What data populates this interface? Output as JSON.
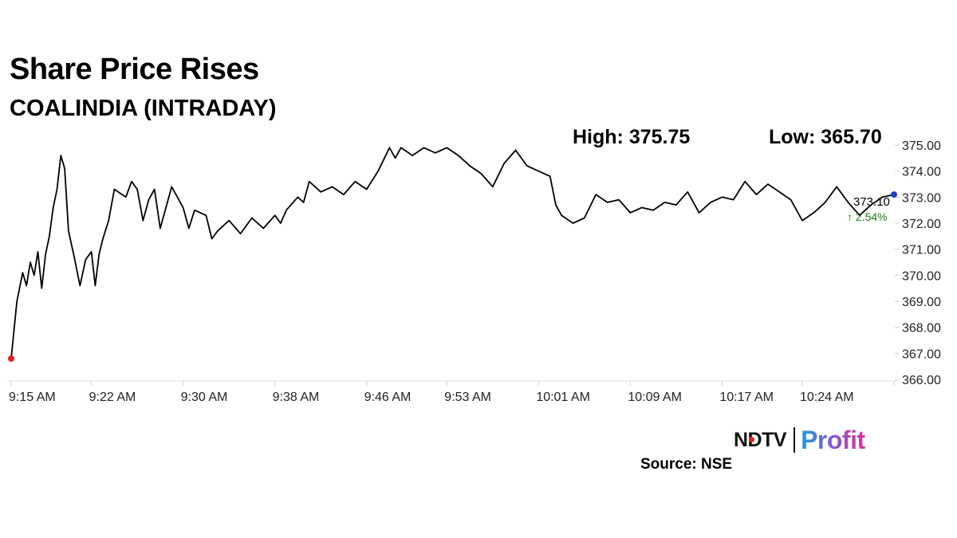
{
  "header": {
    "title": "Share Price Rises",
    "subtitle": "COALINDIA (INTRADAY)"
  },
  "stats": {
    "high": "High: 375.75",
    "low": "Low: 365.70"
  },
  "chart_data": {
    "type": "line",
    "ylim": [
      366,
      375
    ],
    "yticks": [
      "375.00",
      "374.00",
      "373.00",
      "372.00",
      "371.00",
      "370.00",
      "369.00",
      "368.00",
      "367.00",
      "366.00"
    ],
    "xticks": [
      "9:15 AM",
      "9:22 AM",
      "9:30 AM",
      "9:38 AM",
      "9:46 AM",
      "9:53 AM",
      "10:01 AM",
      "10:09 AM",
      "10:17 AM",
      "10:24 AM"
    ],
    "x_range": [
      "9:15 AM",
      "10:32 AM"
    ],
    "grid": false,
    "series": [
      {
        "color": "#000000",
        "points": [
          [
            "9:15 AM",
            366.8
          ],
          [
            "9:15 AM",
            369.0
          ],
          [
            "9:16 AM",
            370.1
          ],
          [
            "9:16 AM",
            369.6
          ],
          [
            "9:16 AM",
            370.5
          ],
          [
            "9:17 AM",
            370.0
          ],
          [
            "9:17 AM",
            370.9
          ],
          [
            "9:17 AM",
            369.5
          ],
          [
            "9:18 AM",
            370.8
          ],
          [
            "9:18 AM",
            371.5
          ],
          [
            "9:18 AM",
            372.6
          ],
          [
            "9:19 AM",
            373.3
          ],
          [
            "9:19 AM",
            374.6
          ],
          [
            "9:19 AM",
            374.1
          ],
          [
            "9:20 AM",
            371.7
          ],
          [
            "9:20 AM",
            370.7
          ],
          [
            "9:21 AM",
            369.6
          ],
          [
            "9:21 AM",
            370.6
          ],
          [
            "9:22 AM",
            370.9
          ],
          [
            "9:22 AM",
            369.6
          ],
          [
            "9:22 AM",
            370.8
          ],
          [
            "9:23 AM",
            371.4
          ],
          [
            "9:23 AM",
            372.1
          ],
          [
            "9:24 AM",
            373.3
          ],
          [
            "9:25 AM",
            373.0
          ],
          [
            "9:25 AM",
            373.6
          ],
          [
            "9:26 AM",
            373.3
          ],
          [
            "9:26 AM",
            372.1
          ],
          [
            "9:27 AM",
            372.9
          ],
          [
            "9:27 AM",
            373.3
          ],
          [
            "9:28 AM",
            371.8
          ],
          [
            "9:29 AM",
            373.4
          ],
          [
            "9:30 AM",
            372.6
          ],
          [
            "9:30 AM",
            371.8
          ],
          [
            "9:31 AM",
            372.5
          ],
          [
            "9:32 AM",
            372.3
          ],
          [
            "9:32 AM",
            371.4
          ],
          [
            "9:33 AM",
            371.7
          ],
          [
            "9:34 AM",
            372.1
          ],
          [
            "9:35 AM",
            371.6
          ],
          [
            "9:36 AM",
            372.2
          ],
          [
            "9:37 AM",
            371.8
          ],
          [
            "9:38 AM",
            372.3
          ],
          [
            "9:38 AM",
            372.0
          ],
          [
            "9:39 AM",
            372.5
          ],
          [
            "9:40 AM",
            373.0
          ],
          [
            "9:40 AM",
            372.8
          ],
          [
            "9:41 AM",
            373.6
          ],
          [
            "9:42 AM",
            373.2
          ],
          [
            "9:43 AM",
            373.4
          ],
          [
            "9:44 AM",
            373.1
          ],
          [
            "9:45 AM",
            373.6
          ],
          [
            "9:46 AM",
            373.3
          ],
          [
            "9:47 AM",
            374.0
          ],
          [
            "9:48 AM",
            374.9
          ],
          [
            "9:48 AM",
            374.5
          ],
          [
            "9:49 AM",
            374.9
          ],
          [
            "9:50 AM",
            374.6
          ],
          [
            "9:51 AM",
            374.9
          ],
          [
            "9:52 AM",
            374.7
          ],
          [
            "9:53 AM",
            374.9
          ],
          [
            "9:54 AM",
            374.6
          ],
          [
            "9:55 AM",
            374.2
          ],
          [
            "9:56 AM",
            373.9
          ],
          [
            "9:57 AM",
            373.4
          ],
          [
            "9:58 AM",
            374.3
          ],
          [
            "9:59 AM",
            374.8
          ],
          [
            "10:00 AM",
            374.2
          ],
          [
            "10:01 AM",
            374.0
          ],
          [
            "10:02 AM",
            373.8
          ],
          [
            "10:02 AM",
            372.7
          ],
          [
            "10:03 AM",
            372.3
          ],
          [
            "10:04 AM",
            372.0
          ],
          [
            "10:05 AM",
            372.2
          ],
          [
            "10:06 AM",
            373.1
          ],
          [
            "10:07 AM",
            372.8
          ],
          [
            "10:08 AM",
            372.9
          ],
          [
            "10:09 AM",
            372.4
          ],
          [
            "10:10 AM",
            372.6
          ],
          [
            "10:11 AM",
            372.5
          ],
          [
            "10:12 AM",
            372.8
          ],
          [
            "10:13 AM",
            372.7
          ],
          [
            "10:14 AM",
            373.2
          ],
          [
            "10:15 AM",
            372.4
          ],
          [
            "10:16 AM",
            372.8
          ],
          [
            "10:17 AM",
            373.0
          ],
          [
            "10:18 AM",
            372.9
          ],
          [
            "10:19 AM",
            373.6
          ],
          [
            "10:20 AM",
            373.1
          ],
          [
            "10:21 AM",
            373.5
          ],
          [
            "10:22 AM",
            373.2
          ],
          [
            "10:23 AM",
            372.9
          ],
          [
            "10:24 AM",
            372.1
          ],
          [
            "10:25 AM",
            372.4
          ],
          [
            "10:26 AM",
            372.8
          ],
          [
            "10:27 AM",
            373.4
          ],
          [
            "10:28 AM",
            372.8
          ],
          [
            "10:29 AM",
            372.3
          ],
          [
            "10:30 AM",
            372.7
          ],
          [
            "10:31 AM",
            373.0
          ],
          [
            "10:32 AM",
            373.1
          ]
        ]
      }
    ],
    "annotations": {
      "last_price": "373.10",
      "change": "2.54%",
      "change_arrow": "↑",
      "change_color": "#1a7a1a",
      "start_marker_color": "#e02020",
      "end_marker_color": "#1f3fbf"
    }
  },
  "footer": {
    "brand_ndtv": "NDTV",
    "brand_profit": "Profit",
    "source": "Source: NSE"
  }
}
